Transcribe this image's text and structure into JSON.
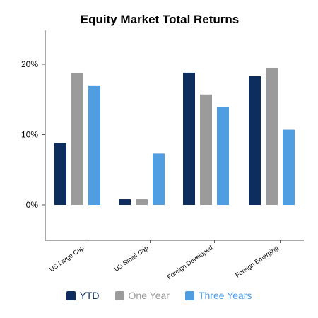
{
  "chart_data": {
    "type": "bar",
    "title": "Equity Market Total Returns",
    "categories": [
      "US Large Cap",
      "US Small Cap",
      "Foreign Developed",
      "Foreign Emerging"
    ],
    "series": [
      {
        "name": "YTD",
        "color": "#0c2d5e",
        "values": [
          8.8,
          0.8,
          18.8,
          18.3
        ]
      },
      {
        "name": "One Year",
        "color": "#9b9b9b",
        "values": [
          18.7,
          0.8,
          15.7,
          19.5
        ]
      },
      {
        "name": "Three Years",
        "color": "#4f9ee2",
        "values": [
          17.0,
          7.3,
          13.9,
          10.7
        ]
      }
    ],
    "yticks": [
      "0%",
      "10%",
      "20%"
    ],
    "ytick_values": [
      0,
      10,
      20
    ],
    "ylim": [
      -5,
      25
    ],
    "grid": false,
    "legend_position": "bottom-center"
  }
}
